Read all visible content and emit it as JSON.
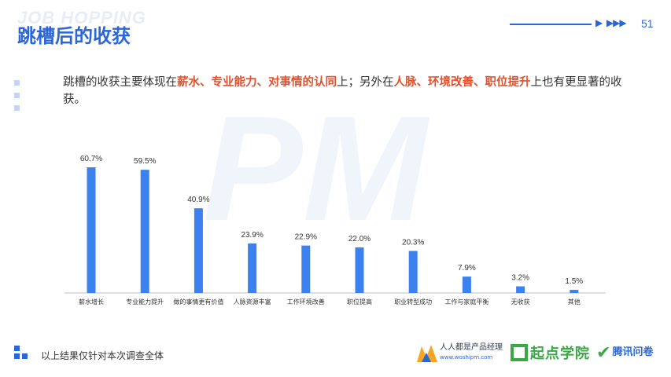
{
  "header": {
    "watermark": "JOB HOPPING",
    "title": "跳槽后的收获",
    "page_number": "51"
  },
  "summary": {
    "p1": "跳槽的收获主要体现在",
    "h1": "薪水、专业能力、对事情的认同",
    "p2": "上；另外在",
    "h2": "人脉、环境改善、职位提升",
    "p3": "上也有更显著的收获。"
  },
  "footer": {
    "note": "以上结果仅针对本次调查全体",
    "logo1_name": "人人都是产品经理",
    "logo1_url": "www.woshipm.com",
    "logo2_name": "起点学院",
    "logo3_name": "腾讯问卷"
  },
  "colors": {
    "accent": "#2b66d9",
    "bar": "#3b82f0",
    "highlight": "#e0522f"
  },
  "chart_data": {
    "type": "bar",
    "categories": [
      "薪水增长",
      "专业能力提升",
      "做的事情更有价值",
      "人脉资源丰富",
      "工作环境改善",
      "职位提高",
      "职业转型成功",
      "工作与家庭平衡",
      "无收获",
      "其他"
    ],
    "values": [
      60.7,
      59.5,
      40.9,
      23.9,
      22.9,
      22.0,
      20.3,
      7.9,
      3.2,
      1.5
    ],
    "value_labels": [
      "60.7%",
      "59.5%",
      "40.9%",
      "23.9%",
      "22.9%",
      "22.0%",
      "20.3%",
      "7.9%",
      "3.2%",
      "1.5%"
    ],
    "unit": "%",
    "title": "",
    "xlabel": "",
    "ylabel": "",
    "ylim": [
      0,
      70
    ],
    "grid": false,
    "legend": "none"
  }
}
